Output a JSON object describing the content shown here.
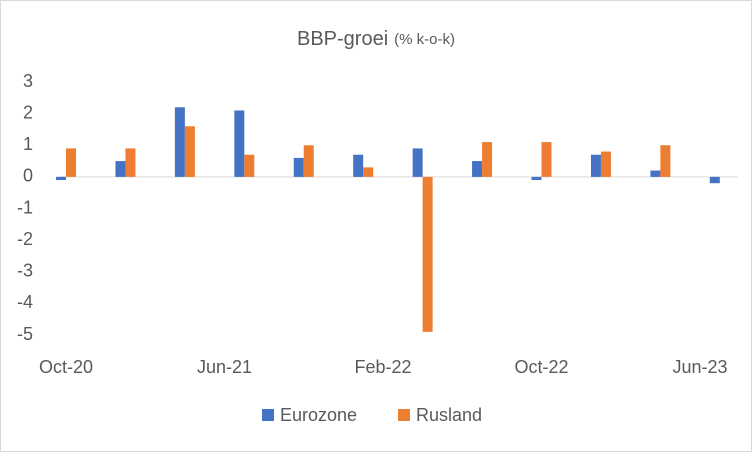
{
  "chart_data": {
    "type": "bar",
    "title": "BBP-groei",
    "subtitle": "(% k-o-k)",
    "x": [
      "2020-10",
      "2021-01",
      "2021-04",
      "2021-07",
      "2021-10",
      "2022-01",
      "2022-04",
      "2022-07",
      "2022-10",
      "2023-01",
      "2023-04",
      "2023-07"
    ],
    "series": [
      {
        "name": "Eurozone",
        "color": "#4472c4",
        "values": [
          -0.1,
          0.5,
          2.2,
          2.1,
          0.6,
          0.7,
          0.9,
          0.5,
          -0.1,
          0.7,
          0.2,
          -0.2
        ]
      },
      {
        "name": "Rusland",
        "color": "#ed7d31",
        "values": [
          0.9,
          0.9,
          1.6,
          0.7,
          1.0,
          0.3,
          -4.9,
          1.1,
          1.1,
          0.8,
          1.0,
          null
        ]
      }
    ],
    "xlim": [
      "2020-10",
      "2023-06"
    ],
    "xticks": [
      {
        "value": "2020-10",
        "label": "Oct-20"
      },
      {
        "value": "2021-06",
        "label": "Jun-21"
      },
      {
        "value": "2022-02",
        "label": "Feb-22"
      },
      {
        "value": "2022-10",
        "label": "Oct-22"
      },
      {
        "value": "2023-06",
        "label": "Jun-23"
      }
    ],
    "ylim": [
      -5,
      3
    ],
    "yticks": [
      -5,
      -4,
      -3,
      -2,
      -1,
      0,
      1,
      2,
      3
    ],
    "legend": "bottom"
  }
}
